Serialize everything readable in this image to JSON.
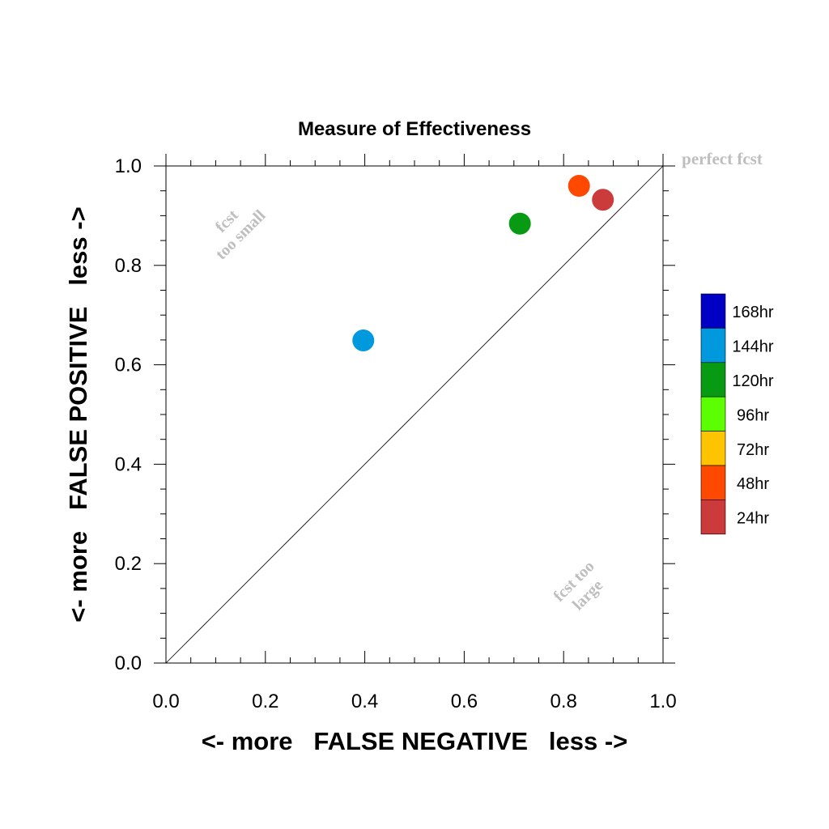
{
  "chart_data": {
    "type": "scatter",
    "title": "Measure of Effectiveness",
    "xlabel": "<- more   FALSE NEGATIVE   less ->",
    "ylabel": "<- more   FALSE POSITIVE   less ->",
    "xlim": [
      0.0,
      1.0
    ],
    "ylim": [
      0.0,
      1.0
    ],
    "xticks": [
      "0.0",
      "0.2",
      "0.4",
      "0.6",
      "0.8",
      "1.0"
    ],
    "yticks": [
      "0.0",
      "0.2",
      "0.4",
      "0.6",
      "0.8",
      "1.0"
    ],
    "grid": false,
    "reference_line": "diagonal from (0,0) to (1,1)",
    "annotations": {
      "perfect": "perfect fcst",
      "small_line1": "fcst",
      "small_line2": "too small",
      "large_line1": "fcst too",
      "large_line2": "large",
      "color": "#bebebe"
    },
    "points": [
      {
        "series": "144hr",
        "x": 0.397,
        "y": 0.649,
        "color": "#0099dd"
      },
      {
        "series": "120hr",
        "x": 0.712,
        "y": 0.884,
        "color": "#089a13"
      },
      {
        "series": "48hr",
        "x": 0.831,
        "y": 0.96,
        "color": "#ff4800"
      },
      {
        "series": "24hr",
        "x": 0.879,
        "y": 0.932,
        "color": "#cc3b3b"
      }
    ],
    "legend": {
      "placement": "right",
      "items": [
        {
          "label": "168hr",
          "color": "#0000c4"
        },
        {
          "label": "144hr",
          "color": "#0099dd"
        },
        {
          "label": "120hr",
          "color": "#089a13"
        },
        {
          "label": "96hr",
          "color": "#5cff00"
        },
        {
          "label": "72hr",
          "color": "#ffc400"
        },
        {
          "label": "48hr",
          "color": "#ff4800"
        },
        {
          "label": "24hr",
          "color": "#cc3b3b"
        }
      ]
    }
  }
}
